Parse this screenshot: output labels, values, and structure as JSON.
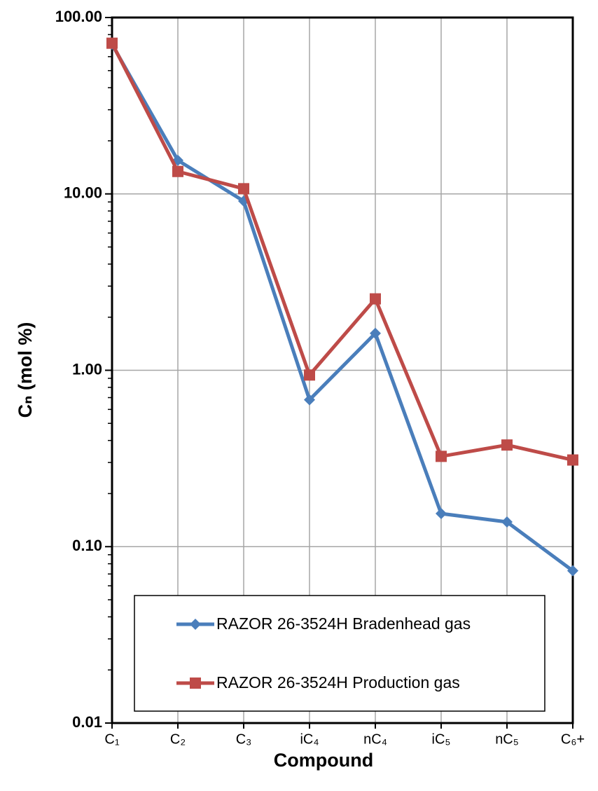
{
  "chart_data": {
    "type": "line",
    "x_label": "Compound",
    "y_label": "Cₙ (mol %)",
    "categories": [
      "C₁",
      "C₂",
      "C₃",
      "iC₄",
      "nC₄",
      "iC₅",
      "nC₅",
      "C₆+"
    ],
    "series": [
      {
        "name": "RAZOR 26-3524H Bradenhead gas",
        "color": "#4a7ebb",
        "marker": "diamond",
        "values": [
          70.5,
          15.5,
          9.1,
          0.68,
          1.62,
          0.154,
          0.138,
          0.073
        ]
      },
      {
        "name": "RAZOR 26-3524H Production gas",
        "color": "#be4b48",
        "marker": "square",
        "values": [
          71.5,
          13.4,
          10.7,
          0.94,
          2.54,
          0.325,
          0.377,
          0.31
        ]
      }
    ],
    "ylim": [
      0.01,
      100
    ],
    "yscale": "log",
    "yticks": [
      {
        "value": 0.01,
        "label": "0.01"
      },
      {
        "value": 0.1,
        "label": "0.10"
      },
      {
        "value": 1,
        "label": "1.00"
      },
      {
        "value": 10,
        "label": "10.00"
      },
      {
        "value": 100,
        "label": "100.00"
      }
    ],
    "grid": true,
    "legend": "bottom"
  }
}
